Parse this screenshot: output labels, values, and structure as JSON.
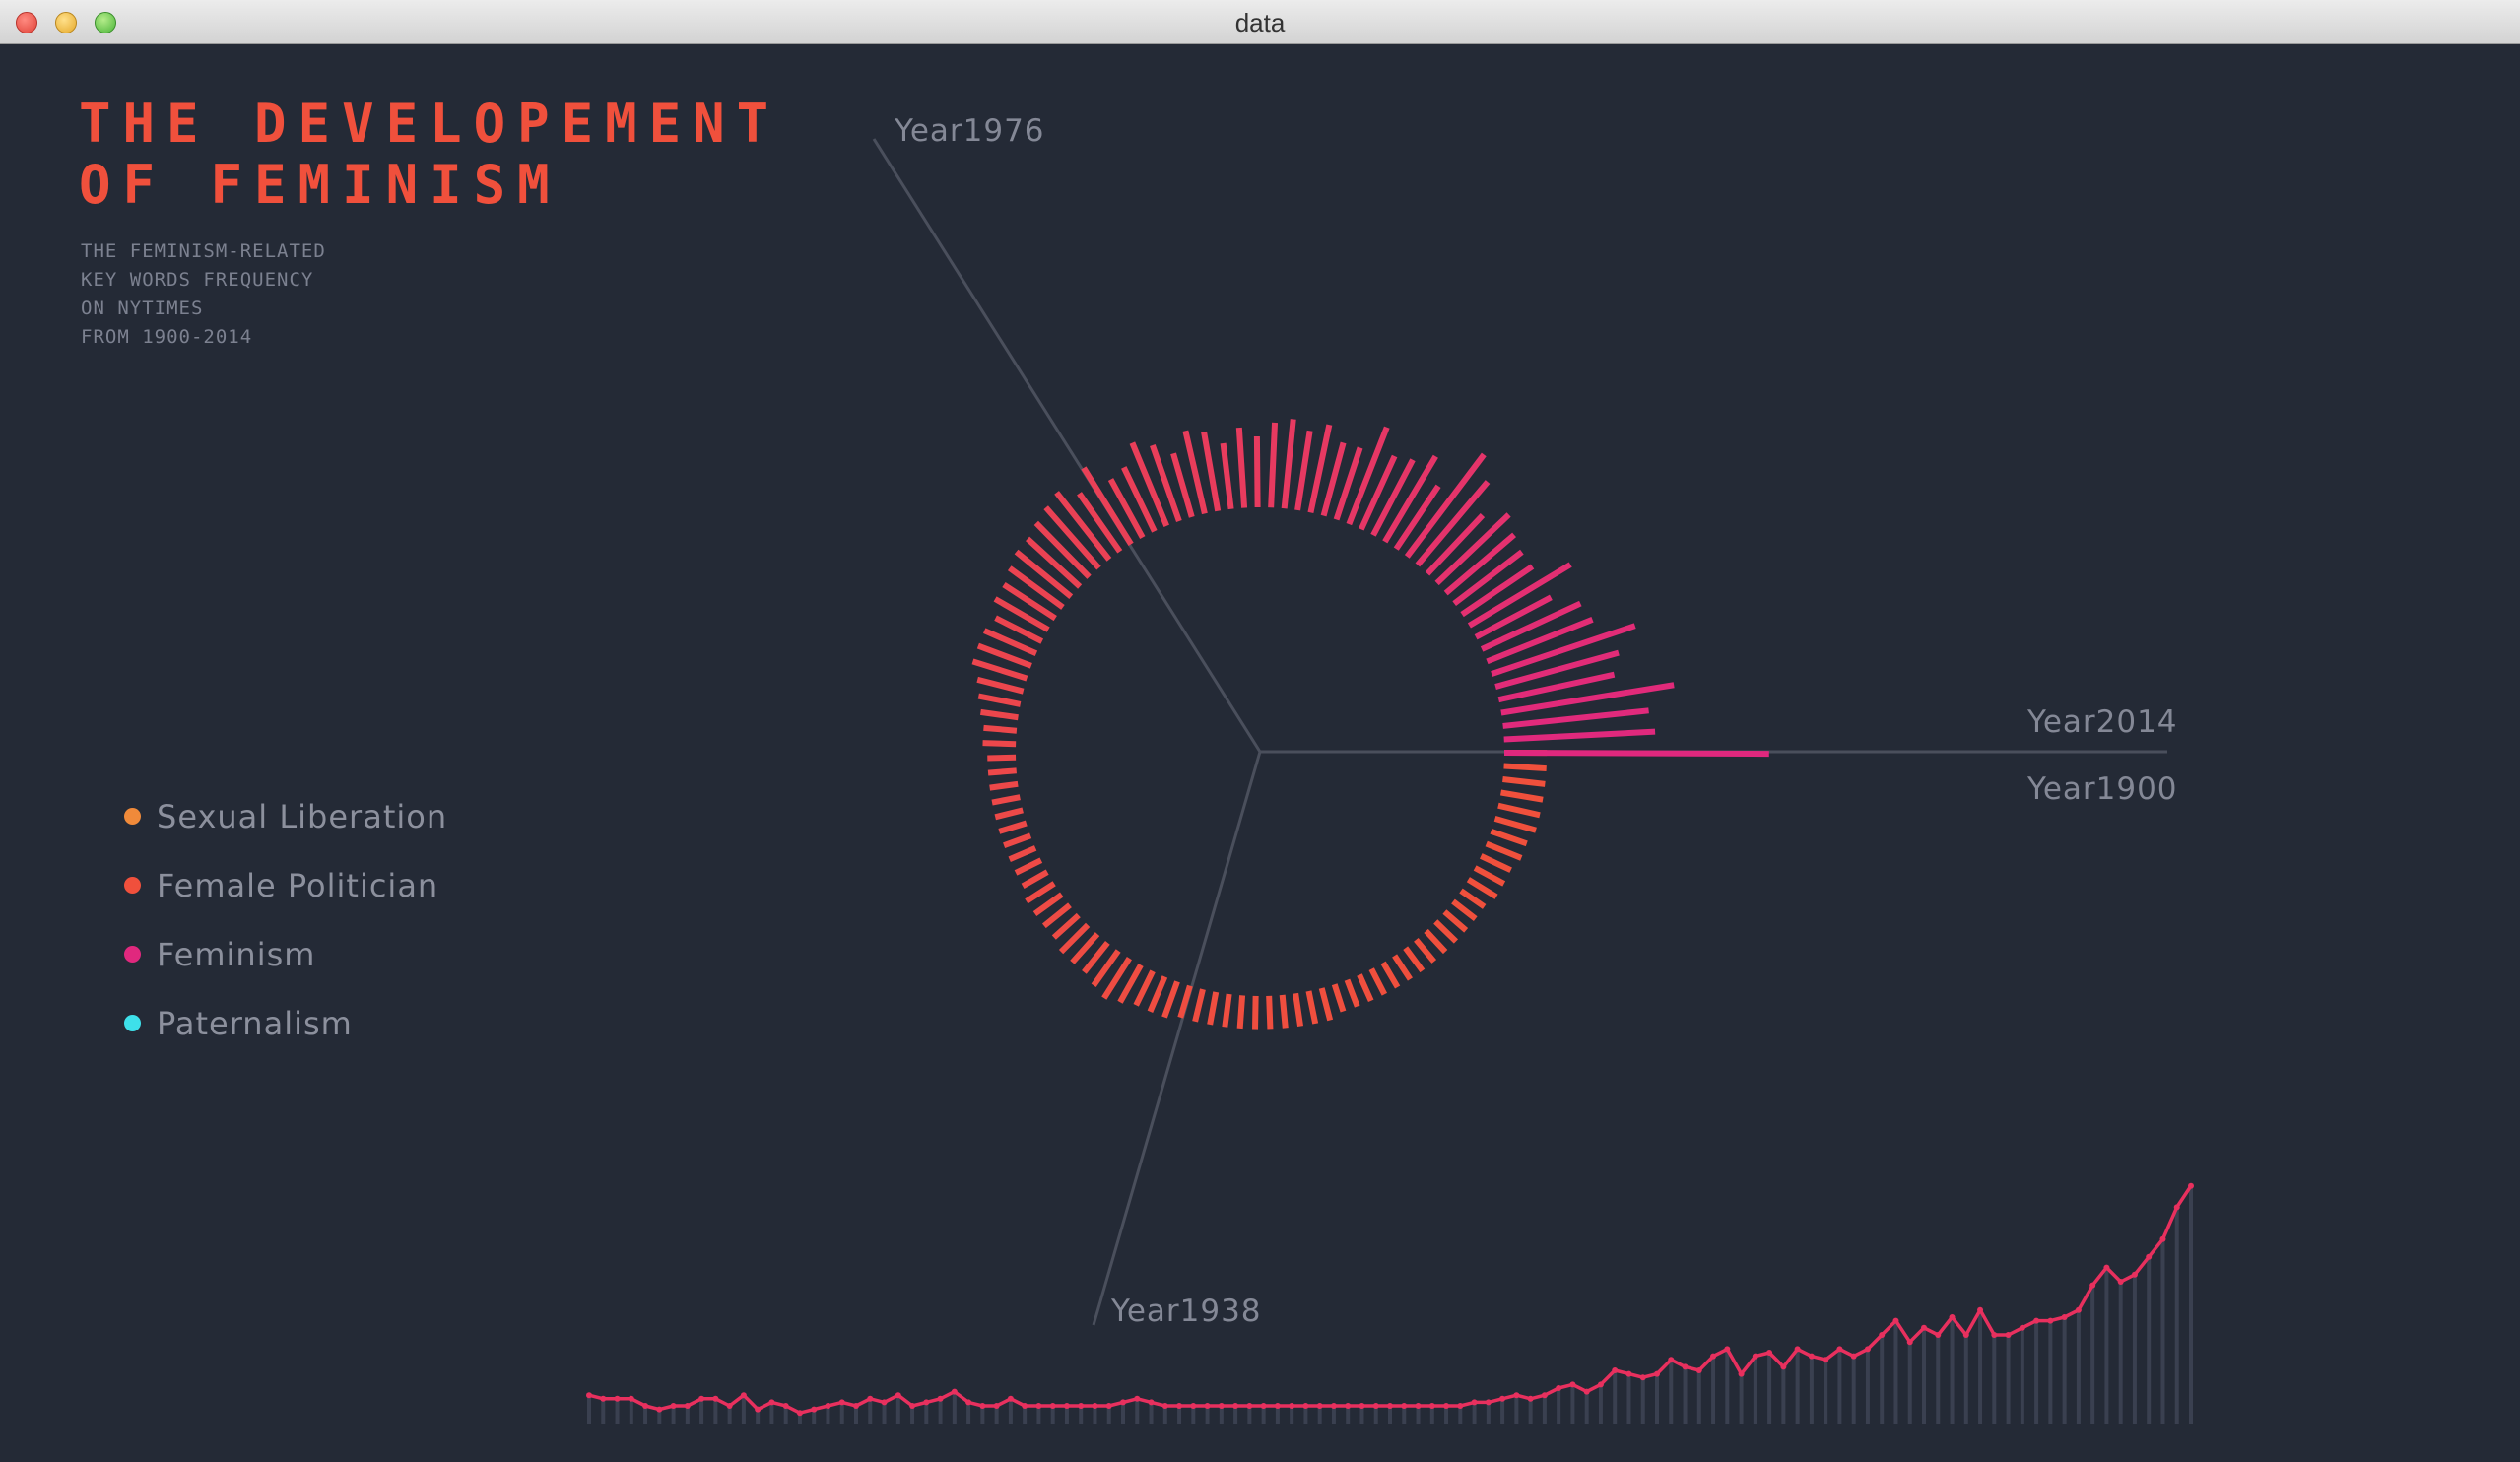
{
  "window": {
    "title": "data"
  },
  "heading": {
    "line1": "THE DEVELOPEMENT",
    "line2": "OF FEMINISM"
  },
  "subheading": [
    "THE FEMINISM-RELATED",
    "KEY WORDS FREQUENCY",
    "ON NYTIMES",
    "FROM 1900-2014"
  ],
  "legend": [
    {
      "label": "Sexual Liberation",
      "color": "#f08a3a"
    },
    {
      "label": "Female Politician",
      "color": "#f0503c"
    },
    {
      "label": "Feminism",
      "color": "#e0287e"
    },
    {
      "label": "Paternalism",
      "color": "#3ee0ea"
    }
  ],
  "year_labels": {
    "y2014": "Year2014",
    "y1900": "Year1900",
    "y1976": "Year1976",
    "y1938": "Year1938"
  },
  "colors": {
    "background": "#242a36",
    "accent": "#f0503c",
    "feminism": "#e0287e",
    "axis": "#4a4f5c"
  },
  "chart_data": [
    {
      "type": "radial-bar",
      "series_shown": "Female Politician",
      "x_start": 1900,
      "x_end": 2014,
      "ylim": [
        0,
        1
      ],
      "values": [
        0.09,
        0.09,
        0.09,
        0.09,
        0.09,
        0.09,
        0.08,
        0.08,
        0.07,
        0.07,
        0.07,
        0.06,
        0.06,
        0.06,
        0.06,
        0.06,
        0.06,
        0.06,
        0.06,
        0.06,
        0.06,
        0.06,
        0.06,
        0.06,
        0.07,
        0.07,
        0.07,
        0.07,
        0.07,
        0.07,
        0.07,
        0.07,
        0.07,
        0.07,
        0.07,
        0.08,
        0.08,
        0.08,
        0.09,
        0.1,
        0.09,
        0.08,
        0.08,
        0.08,
        0.07,
        0.07,
        0.07,
        0.07,
        0.06,
        0.06,
        0.06,
        0.06,
        0.06,
        0.06,
        0.06,
        0.06,
        0.06,
        0.06,
        0.07,
        0.07,
        0.08,
        0.09,
        0.1,
        0.12,
        0.12,
        0.12,
        0.11,
        0.13,
        0.13,
        0.14,
        0.15,
        0.15,
        0.16,
        0.17,
        0.18,
        0.15,
        0.19,
        0.14,
        0.15,
        0.19,
        0.17,
        0.14,
        0.18,
        0.17,
        0.14,
        0.17,
        0.15,
        0.18,
        0.19,
        0.17,
        0.19,
        0.16,
        0.16,
        0.22,
        0.17,
        0.18,
        0.21,
        0.16,
        0.27,
        0.23,
        0.17,
        0.21,
        0.19,
        0.18,
        0.18,
        0.25,
        0.18,
        0.23,
        0.24,
        0.32,
        0.27,
        0.25,
        0.37,
        0.31,
        0.32,
        0.56
      ]
    },
    {
      "type": "line",
      "series_shown": "Female Politician",
      "x_start": 1900,
      "x_end": 2014,
      "ylim": [
        0,
        1
      ],
      "values": [
        0.08,
        0.07,
        0.07,
        0.07,
        0.05,
        0.04,
        0.05,
        0.05,
        0.07,
        0.07,
        0.05,
        0.08,
        0.04,
        0.06,
        0.05,
        0.03,
        0.04,
        0.05,
        0.06,
        0.05,
        0.07,
        0.06,
        0.08,
        0.05,
        0.06,
        0.07,
        0.09,
        0.06,
        0.05,
        0.05,
        0.07,
        0.05,
        0.05,
        0.05,
        0.05,
        0.05,
        0.05,
        0.05,
        0.06,
        0.07,
        0.06,
        0.05,
        0.05,
        0.05,
        0.05,
        0.05,
        0.05,
        0.05,
        0.05,
        0.05,
        0.05,
        0.05,
        0.05,
        0.05,
        0.05,
        0.05,
        0.05,
        0.05,
        0.05,
        0.05,
        0.05,
        0.05,
        0.05,
        0.06,
        0.06,
        0.07,
        0.08,
        0.07,
        0.08,
        0.1,
        0.11,
        0.09,
        0.11,
        0.15,
        0.14,
        0.13,
        0.14,
        0.18,
        0.16,
        0.15,
        0.19,
        0.21,
        0.14,
        0.19,
        0.2,
        0.16,
        0.21,
        0.19,
        0.18,
        0.21,
        0.19,
        0.21,
        0.25,
        0.29,
        0.23,
        0.27,
        0.25,
        0.3,
        0.25,
        0.32,
        0.25,
        0.25,
        0.27,
        0.29,
        0.29,
        0.3,
        0.32,
        0.39,
        0.44,
        0.4,
        0.42,
        0.47,
        0.52,
        0.61,
        0.67
      ]
    }
  ]
}
